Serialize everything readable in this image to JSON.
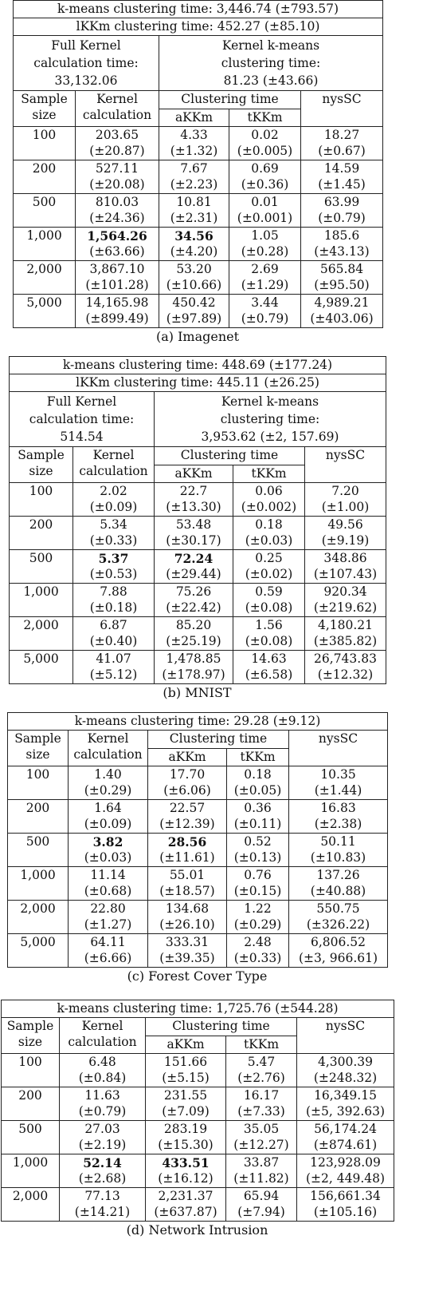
{
  "tables": [
    {
      "caption": "(a) Imagenet",
      "kmeans_time": "k-means clustering time: 3,446.74 (±793.57)",
      "lkkm_time": "lKKm clustering time: 452.27 (±85.10)",
      "full_kernel": [
        "Full Kernel",
        "calculation time:",
        "33,132.06"
      ],
      "kernel_kmeans": [
        "Kernel k-means",
        "clustering time:",
        "81.23 (±43.66)"
      ],
      "headers": {
        "sample": [
          "Sample",
          "size"
        ],
        "kernel": [
          "Kernel",
          "calculation"
        ],
        "clustering": "Clustering time",
        "akkm": "aKKm",
        "tkkm": "tKKm",
        "nyssc": "nysSC"
      },
      "rows": [
        {
          "size": "100",
          "kernel": [
            "203.65",
            "(±20.87)"
          ],
          "akkm": [
            "4.33",
            "(±1.32)"
          ],
          "tkkm": [
            "0.02",
            "(±0.005)"
          ],
          "nyssc": [
            "18.27",
            "(±0.67)"
          ]
        },
        {
          "size": "200",
          "kernel": [
            "527.11",
            "(±20.08)"
          ],
          "akkm": [
            "7.67",
            "(±2.23)"
          ],
          "tkkm": [
            "0.69",
            "(±0.36)"
          ],
          "nyssc": [
            "14.59",
            "(±1.45)"
          ]
        },
        {
          "size": "500",
          "kernel": [
            "810.03",
            "(±24.36)"
          ],
          "akkm": [
            "10.81",
            "(±2.31)"
          ],
          "tkkm": [
            "0.01",
            "(±0.001)"
          ],
          "nyssc": [
            "63.99",
            "(±0.79)"
          ]
        },
        {
          "size": "1,000",
          "kernel": [
            "1,564.26",
            "(±63.66)"
          ],
          "akkm": [
            "34.56",
            "(±4.20)"
          ],
          "tkkm": [
            "1.05",
            "(±0.28)"
          ],
          "nyssc": [
            "185.6",
            "(±43.13)"
          ]
        },
        {
          "size": "2,000",
          "kernel": [
            "3,867.10",
            "(±101.28)"
          ],
          "akkm": [
            "53.20",
            "(±10.66)"
          ],
          "tkkm": [
            "2.69",
            "(±1.29)"
          ],
          "nyssc": [
            "565.84",
            "(±95.50)"
          ]
        },
        {
          "size": "5,000",
          "kernel": [
            "14,165.98",
            "(±899.49)"
          ],
          "akkm": [
            "450.42",
            "(±97.89)"
          ],
          "tkkm": [
            "3.44",
            "(±0.79)"
          ],
          "nyssc": [
            "4,989.21",
            "(±403.06)"
          ]
        }
      ]
    },
    {
      "caption": "(b) MNIST",
      "kmeans_time": "k-means clustering time: 448.69 (±177.24)",
      "lkkm_time": "lKKm clustering time: 445.11 (±26.25)",
      "full_kernel": [
        "Full Kernel",
        "calculation time:",
        "514.54"
      ],
      "kernel_kmeans": [
        "Kernel k-means",
        "clustering time:",
        "3,953.62 (±2, 157.69)"
      ],
      "headers": {
        "sample": [
          "Sample",
          "size"
        ],
        "kernel": [
          "Kernel",
          "calculation"
        ],
        "clustering": "Clustering time",
        "akkm": "aKKm",
        "tkkm": "tKKm",
        "nyssc": "nysSC"
      },
      "rows": [
        {
          "size": "100",
          "kernel": [
            "2.02",
            "(±0.09)"
          ],
          "akkm": [
            "22.7",
            "(±13.30)"
          ],
          "tkkm": [
            "0.06",
            "(±0.002)"
          ],
          "nyssc": [
            "7.20",
            "(±1.00)"
          ]
        },
        {
          "size": "200",
          "kernel": [
            "5.34",
            "(±0.33)"
          ],
          "akkm": [
            "53.48",
            "(±30.17)"
          ],
          "tkkm": [
            "0.18",
            "(±0.03)"
          ],
          "nyssc": [
            "49.56",
            "(±9.19)"
          ]
        },
        {
          "size": "500",
          "kernel": [
            "5.37",
            "(±0.53)"
          ],
          "akkm": [
            "72.24",
            "(±29.44)"
          ],
          "tkkm": [
            "0.25",
            "(±0.02)"
          ],
          "nyssc": [
            "348.86",
            "(±107.43)"
          ]
        },
        {
          "size": "1,000",
          "kernel": [
            "7.88",
            "(±0.18)"
          ],
          "akkm": [
            "75.26",
            "(±22.42)"
          ],
          "tkkm": [
            "0.59",
            "(±0.08)"
          ],
          "nyssc": [
            "920.34",
            "(±219.62)"
          ]
        },
        {
          "size": "2,000",
          "kernel": [
            "6.87",
            "(±0.40)"
          ],
          "akkm": [
            "85.20",
            "(±25.19)"
          ],
          "tkkm": [
            "1.56",
            "(±0.08)"
          ],
          "nyssc": [
            "4,180.21",
            "(±385.82)"
          ]
        },
        {
          "size": "5,000",
          "kernel": [
            "41.07",
            "(±5.12)"
          ],
          "akkm": [
            "1,478.85",
            "(±178.97)"
          ],
          "tkkm": [
            "14.63",
            "(±6.58)"
          ],
          "nyssc": [
            "26,743.83",
            "(±12.32)"
          ]
        }
      ]
    },
    {
      "caption": "(c) Forest Cover Type",
      "kmeans_time": "k-means clustering time: 29.28 (±9.12)",
      "headers": {
        "sample": [
          "Sample",
          "size"
        ],
        "kernel": [
          "Kernel",
          "calculation"
        ],
        "clustering": "Clustering time",
        "akkm": "aKKm",
        "tkkm": "tKKm",
        "nyssc": "nysSC"
      },
      "rows": [
        {
          "size": "100",
          "kernel": [
            "1.40",
            "(±0.29)"
          ],
          "akkm": [
            "17.70",
            "(±6.06)"
          ],
          "tkkm": [
            "0.18",
            "(±0.05)"
          ],
          "nyssc": [
            "10.35",
            "(±1.44)"
          ]
        },
        {
          "size": "200",
          "kernel": [
            "1.64",
            "(±0.09)"
          ],
          "akkm": [
            "22.57",
            "(±12.39)"
          ],
          "tkkm": [
            "0.36",
            "(±0.11)"
          ],
          "nyssc": [
            "16.83",
            "(±2.38)"
          ]
        },
        {
          "size": "500",
          "kernel": [
            "3.82",
            "(±0.03)"
          ],
          "akkm": [
            "28.56",
            "(±11.61)"
          ],
          "tkkm": [
            "0.52",
            "(±0.13)"
          ],
          "nyssc": [
            "50.11",
            "(±10.83)"
          ]
        },
        {
          "size": "1,000",
          "kernel": [
            "11.14",
            "(±0.68)"
          ],
          "akkm": [
            "55.01",
            "(±18.57)"
          ],
          "tkkm": [
            "0.76",
            "(±0.15)"
          ],
          "nyssc": [
            "137.26",
            "(±40.88)"
          ]
        },
        {
          "size": "2,000",
          "kernel": [
            "22.80",
            "(±1.27)"
          ],
          "akkm": [
            "134.68",
            "(±26.10)"
          ],
          "tkkm": [
            "1.22",
            "(±0.29)"
          ],
          "nyssc": [
            "550.75",
            "(±326.22)"
          ]
        },
        {
          "size": "5,000",
          "kernel": [
            "64.11",
            "(±6.66)"
          ],
          "akkm": [
            "333.31",
            "(±39.35)"
          ],
          "tkkm": [
            "2.48",
            "(±0.33)"
          ],
          "nyssc": [
            "6,806.52",
            "(±3, 966.61)"
          ]
        }
      ]
    },
    {
      "caption": "(d) Network Intrusion",
      "kmeans_time": "k-means clustering time: 1,725.76 (±544.28)",
      "headers": {
        "sample": [
          "Sample",
          "size"
        ],
        "kernel": [
          "Kernel",
          "calculation"
        ],
        "clustering": "Clustering time",
        "akkm": "aKKm",
        "tkkm": "tKKm",
        "nyssc": "nysSC"
      },
      "rows": [
        {
          "size": "100",
          "kernel": [
            "6.48",
            "(±0.84)"
          ],
          "akkm": [
            "151.66",
            "(±5.15)"
          ],
          "tkkm": [
            "5.47",
            "(±2.76)"
          ],
          "nyssc": [
            "4,300.39",
            "(±248.32)"
          ]
        },
        {
          "size": "200",
          "kernel": [
            "11.63",
            "(±0.79)"
          ],
          "akkm": [
            "231.55",
            "(±7.09)"
          ],
          "tkkm": [
            "16.17",
            "(±7.33)"
          ],
          "nyssc": [
            "16,349.15",
            "(±5, 392.63)"
          ]
        },
        {
          "size": "500",
          "kernel": [
            "27.03",
            "(±2.19)"
          ],
          "akkm": [
            "283.19",
            "(±15.30)"
          ],
          "tkkm": [
            "35.05",
            "(±12.27)"
          ],
          "nyssc": [
            "56,174.24",
            "(±874.61)"
          ]
        },
        {
          "size": "1,000",
          "kernel": [
            "52.14",
            "(±2.68)"
          ],
          "akkm": [
            "433.51",
            "(±16.12)"
          ],
          "tkkm": [
            "33.87",
            "(±11.82)"
          ],
          "nyssc": [
            "123,928.09",
            "(±2, 449.48)"
          ]
        },
        {
          "size": "2,000",
          "kernel": [
            "77.13",
            "(±14.21)"
          ],
          "akkm": [
            "2,231.37",
            "(±637.87)"
          ],
          "tkkm": [
            "65.94",
            "(±7.94)"
          ],
          "nyssc": [
            "156,661.34",
            "(±105.16)"
          ]
        }
      ]
    }
  ]
}
